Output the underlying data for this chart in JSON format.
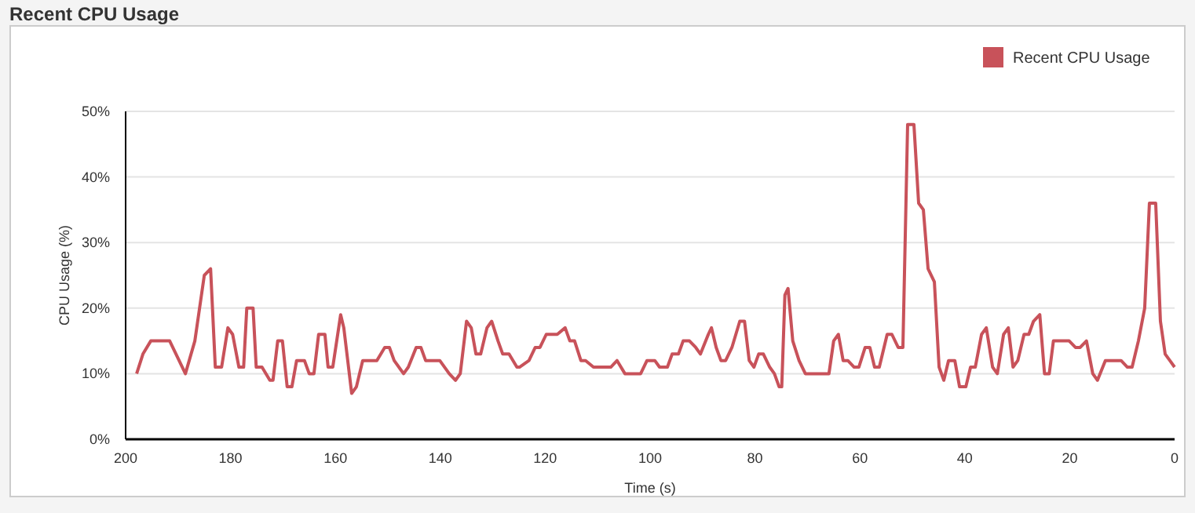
{
  "chart_data": {
    "type": "line",
    "title": "Recent CPU Usage",
    "xlabel": "Time (s)",
    "ylabel": "CPU Usage (%)",
    "xlim": [
      200,
      0
    ],
    "xticks": [
      200,
      180,
      160,
      140,
      120,
      100,
      80,
      60,
      40,
      20,
      0
    ],
    "ylim": [
      0,
      50
    ],
    "yticks": [
      {
        "value": 0,
        "label": "0%"
      },
      {
        "value": 10,
        "label": "10%"
      },
      {
        "value": 20,
        "label": "20%"
      },
      {
        "value": 30,
        "label": "30%"
      },
      {
        "value": 40,
        "label": "40%"
      },
      {
        "value": 50,
        "label": "50%"
      }
    ],
    "grid": "y",
    "legend": "top right",
    "marker": "none",
    "line_style": "solid",
    "x": [
      197.9,
      196.7,
      195.2,
      191.6,
      188.6,
      186.8,
      185.0,
      183.8,
      182.9,
      181.7,
      180.5,
      179.6,
      178.4,
      177.5,
      176.9,
      175.7,
      175.1,
      174.0,
      172.5,
      171.9,
      171.0,
      170.1,
      169.2,
      168.3,
      167.4,
      165.9,
      165.0,
      164.1,
      163.2,
      162.0,
      161.4,
      160.5,
      159.0,
      158.4,
      156.9,
      156.0,
      154.8,
      152.1,
      150.6,
      149.7,
      148.8,
      147.0,
      146.1,
      144.6,
      143.7,
      142.8,
      140.1,
      138.3,
      137.1,
      136.2,
      135.0,
      134.1,
      133.2,
      132.3,
      131.1,
      130.2,
      129.0,
      128.1,
      126.9,
      125.4,
      124.9,
      123.1,
      121.9,
      121.0,
      119.8,
      117.7,
      116.2,
      115.3,
      114.4,
      113.2,
      112.3,
      110.8,
      107.5,
      106.3,
      104.8,
      101.8,
      100.6,
      99.1,
      98.2,
      96.7,
      95.8,
      94.6,
      93.7,
      92.5,
      91.3,
      90.4,
      88.9,
      88.3,
      87.4,
      86.5,
      85.6,
      84.4,
      82.9,
      82.0,
      81.1,
      80.2,
      79.3,
      78.4,
      77.2,
      76.3,
      75.4,
      74.9,
      74.3,
      73.7,
      72.8,
      71.6,
      70.4,
      65.9,
      65.0,
      64.1,
      63.2,
      62.3,
      61.1,
      60.2,
      59.0,
      58.1,
      57.2,
      56.3,
      54.8,
      53.9,
      52.7,
      51.8,
      50.9,
      49.7,
      48.8,
      47.9,
      47.0,
      45.8,
      44.9,
      44.0,
      43.1,
      41.9,
      41.0,
      39.8,
      38.9,
      38.0,
      36.8,
      35.9,
      34.7,
      33.8,
      32.6,
      31.7,
      30.8,
      29.9,
      28.7,
      27.8,
      26.9,
      25.7,
      24.8,
      23.9,
      23.1,
      20.1,
      18.9,
      18.0,
      16.8,
      15.6,
      14.7,
      13.2,
      10.2,
      9.0,
      8.1,
      6.9,
      5.7,
      4.8,
      3.6,
      2.7,
      1.8,
      0.9,
      0.0
    ],
    "series": [
      {
        "name": "Recent CPU Usage",
        "color": "#c8525a",
        "values": [
          10,
          13,
          15,
          15,
          10,
          15,
          25,
          26,
          11,
          11,
          17,
          16,
          11,
          11,
          20,
          20,
          11,
          11,
          9,
          9,
          15,
          15,
          8,
          8,
          12,
          12,
          10,
          10,
          16,
          16,
          11,
          11,
          19,
          17,
          7,
          8,
          12,
          12,
          14,
          14,
          12,
          10,
          11,
          14,
          14,
          12,
          12,
          10,
          9,
          10,
          18,
          17,
          13,
          13,
          17,
          18,
          15,
          13,
          13,
          11,
          11,
          12,
          14,
          14,
          16,
          16,
          17,
          15,
          15,
          12,
          12,
          11,
          11,
          12,
          10,
          10,
          12,
          12,
          11,
          11,
          13,
          13,
          15,
          15,
          14,
          13,
          16,
          17,
          14,
          12,
          12,
          14,
          18,
          18,
          12,
          11,
          13,
          13,
          11,
          10,
          8,
          8,
          22,
          23,
          15,
          12,
          10,
          10,
          15,
          16,
          12,
          12,
          11,
          11,
          14,
          14,
          11,
          11,
          16,
          16,
          14,
          14,
          48,
          48,
          36,
          35,
          26,
          24,
          11,
          9,
          12,
          12,
          8,
          8,
          11,
          11,
          16,
          17,
          11,
          10,
          16,
          17,
          11,
          12,
          16,
          16,
          18,
          19,
          10,
          10,
          15,
          15,
          14,
          14,
          15,
          10,
          9,
          12,
          12,
          11,
          11,
          15,
          20,
          36,
          36,
          18,
          13,
          12,
          11
        ]
      }
    ]
  }
}
